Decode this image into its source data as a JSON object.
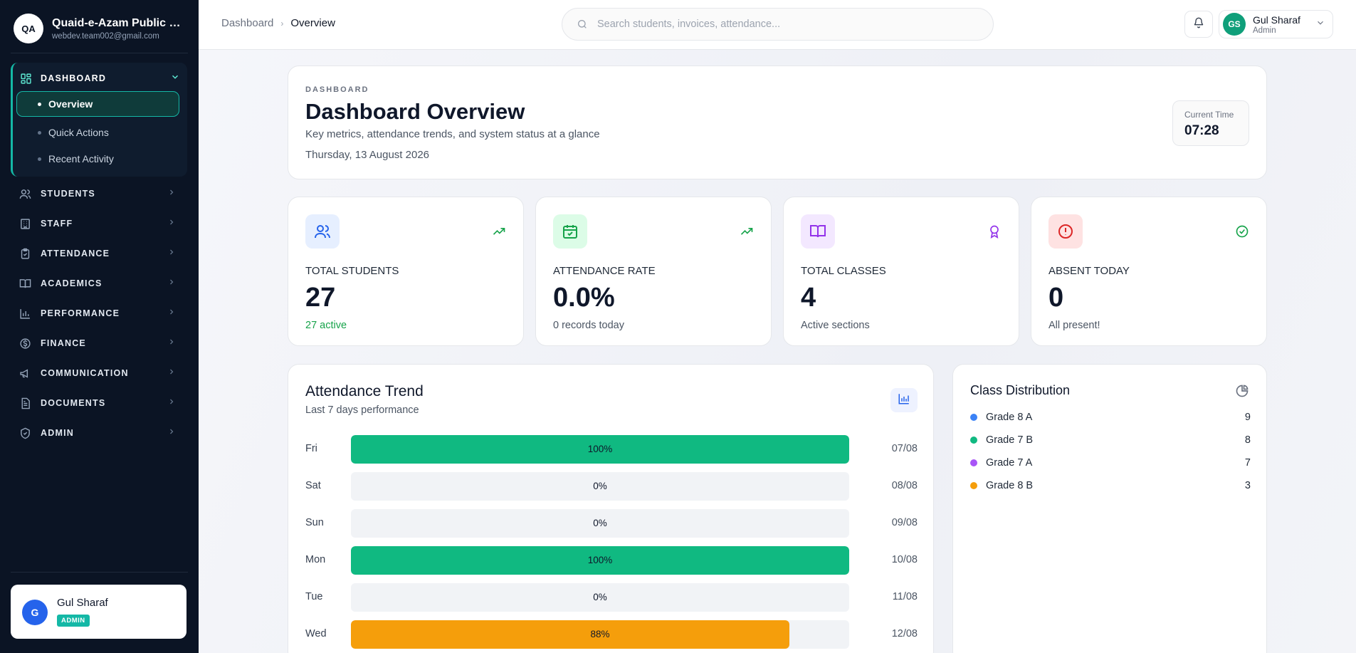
{
  "school": {
    "initials": "QA",
    "name": "Quaid-e-Azam Public School",
    "email": "webdev.team002@gmail.com"
  },
  "nav": {
    "dashboard": {
      "label": "DASHBOARD",
      "sub": [
        "Overview",
        "Quick Actions",
        "Recent Activity"
      ]
    },
    "items": [
      {
        "label": "STUDENTS",
        "icon": "users-icon"
      },
      {
        "label": "STAFF",
        "icon": "building-icon"
      },
      {
        "label": "ATTENDANCE",
        "icon": "clipboard-check-icon"
      },
      {
        "label": "ACADEMICS",
        "icon": "book-icon"
      },
      {
        "label": "PERFORMANCE",
        "icon": "bar-chart-icon"
      },
      {
        "label": "FINANCE",
        "icon": "dollar-icon"
      },
      {
        "label": "COMMUNICATION",
        "icon": "megaphone-icon"
      },
      {
        "label": "DOCUMENTS",
        "icon": "document-icon"
      },
      {
        "label": "ADMIN",
        "icon": "shield-icon"
      }
    ]
  },
  "sidebar_user": {
    "initial": "G",
    "name": "Gul Sharaf",
    "role": "ADMIN"
  },
  "topbar": {
    "breadcrumb": [
      "Dashboard",
      "Overview"
    ],
    "search_placeholder": "Search students, invoices, attendance...",
    "user": {
      "initials": "GS",
      "name": "Gul Sharaf",
      "role": "Admin"
    }
  },
  "hero": {
    "kicker": "DASHBOARD",
    "title": "Dashboard Overview",
    "subtitle": "Key metrics, attendance trends, and system status at a glance",
    "date": "Thursday, 13 August 2026",
    "time_label": "Current Time",
    "time": "07:28"
  },
  "stats": [
    {
      "label": "TOTAL STUDENTS",
      "value": "27",
      "note": "27 active",
      "icon": "users-icon",
      "trend_icon": "trending-up-icon",
      "color": "#2563eb",
      "bg": "#e6efff",
      "trend_color": "#16a34a"
    },
    {
      "label": "ATTENDANCE RATE",
      "value": "0.0%",
      "note": "0 records today",
      "icon": "calendar-check-icon",
      "trend_icon": "trending-up-icon",
      "color": "#16a34a",
      "bg": "#dcfce7",
      "trend_color": "#16a34a"
    },
    {
      "label": "TOTAL CLASSES",
      "value": "4",
      "note": "Active sections",
      "icon": "book-open-icon",
      "trend_icon": "award-icon",
      "color": "#9333ea",
      "bg": "#f3e8ff",
      "trend_color": "#9333ea"
    },
    {
      "label": "ABSENT TODAY",
      "value": "0",
      "note": "All present!",
      "icon": "alert-circle-icon",
      "trend_icon": "check-circle-icon",
      "color": "#dc2626",
      "bg": "#fee2e2",
      "trend_color": "#16a34a"
    }
  ],
  "trend": {
    "title": "Attendance Trend",
    "subtitle": "Last 7 days performance",
    "rows": [
      {
        "day": "Fri",
        "pct": 100,
        "label": "100%",
        "date": "07/08",
        "color": "#10b981"
      },
      {
        "day": "Sat",
        "pct": 0,
        "label": "0%",
        "date": "08/08",
        "color": "#10b981"
      },
      {
        "day": "Sun",
        "pct": 0,
        "label": "0%",
        "date": "09/08",
        "color": "#10b981"
      },
      {
        "day": "Mon",
        "pct": 100,
        "label": "100%",
        "date": "10/08",
        "color": "#10b981"
      },
      {
        "day": "Tue",
        "pct": 0,
        "label": "0%",
        "date": "11/08",
        "color": "#10b981"
      },
      {
        "day": "Wed",
        "pct": 88,
        "label": "88%",
        "date": "12/08",
        "color": "#f59e0b"
      }
    ]
  },
  "distribution": {
    "title": "Class Distribution",
    "rows": [
      {
        "name": "Grade 8 A",
        "count": "9",
        "color": "#3b82f6"
      },
      {
        "name": "Grade 7 B",
        "count": "8",
        "color": "#10b981"
      },
      {
        "name": "Grade 7 A",
        "count": "7",
        "color": "#a855f7"
      },
      {
        "name": "Grade 8 B",
        "count": "3",
        "color": "#f59e0b"
      }
    ]
  }
}
